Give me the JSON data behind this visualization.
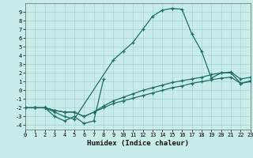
{
  "xlabel": "Humidex (Indice chaleur)",
  "bg_color": "#c8ecea",
  "line_color": "#1e6e66",
  "grid_color": "#a8d4d0",
  "xlim": [
    0,
    23
  ],
  "ylim": [
    -4.5,
    10.0
  ],
  "xticks": [
    0,
    1,
    2,
    3,
    4,
    5,
    6,
    7,
    8,
    9,
    10,
    11,
    12,
    13,
    14,
    15,
    16,
    17,
    18,
    19,
    20,
    21,
    22,
    23
  ],
  "yticks": [
    -4,
    -3,
    -2,
    -1,
    0,
    1,
    2,
    3,
    4,
    5,
    6,
    7,
    8,
    9
  ],
  "series1_x": [
    0,
    1,
    2,
    3,
    4,
    5,
    6,
    7,
    8
  ],
  "series1_y": [
    -2,
    -2,
    -2,
    -3,
    -3.5,
    -3,
    -3.8,
    -3.5,
    1.3
  ],
  "series2_x": [
    0,
    1,
    2,
    3,
    4,
    5,
    9,
    10,
    11,
    12,
    13,
    14,
    15,
    16,
    17,
    18,
    19,
    20,
    21,
    22,
    23
  ],
  "series2_y": [
    -2,
    -2,
    -2,
    -2.5,
    -3.0,
    -3.3,
    3.5,
    4.5,
    5.5,
    7.0,
    8.5,
    9.2,
    9.4,
    9.3,
    6.5,
    4.5,
    1.4,
    2.0,
    2.0,
    0.8,
    1.1
  ],
  "series3_x": [
    0,
    1,
    2,
    3,
    4,
    5,
    6,
    7,
    8,
    9,
    10,
    11,
    12,
    13,
    14,
    15,
    16,
    17,
    18,
    19,
    20,
    21,
    22,
    23
  ],
  "series3_y": [
    -2,
    -2,
    -2,
    -2.3,
    -2.5,
    -2.5,
    -3,
    -2.5,
    -2,
    -1.5,
    -1.2,
    -0.9,
    -0.6,
    -0.3,
    0.0,
    0.3,
    0.5,
    0.8,
    1.0,
    1.2,
    1.4,
    1.5,
    0.8,
    1.0
  ],
  "series4_x": [
    0,
    1,
    2,
    3,
    4,
    5,
    6,
    7,
    8,
    9,
    10,
    11,
    12,
    13,
    14,
    15,
    16,
    17,
    18,
    19,
    20,
    21,
    22,
    23
  ],
  "series4_y": [
    -2,
    -2,
    -2,
    -2.3,
    -2.5,
    -2.5,
    -3,
    -2.5,
    -1.8,
    -1.2,
    -0.8,
    -0.4,
    0.0,
    0.3,
    0.6,
    0.9,
    1.1,
    1.3,
    1.5,
    1.8,
    2.0,
    2.1,
    1.3,
    1.5
  ]
}
